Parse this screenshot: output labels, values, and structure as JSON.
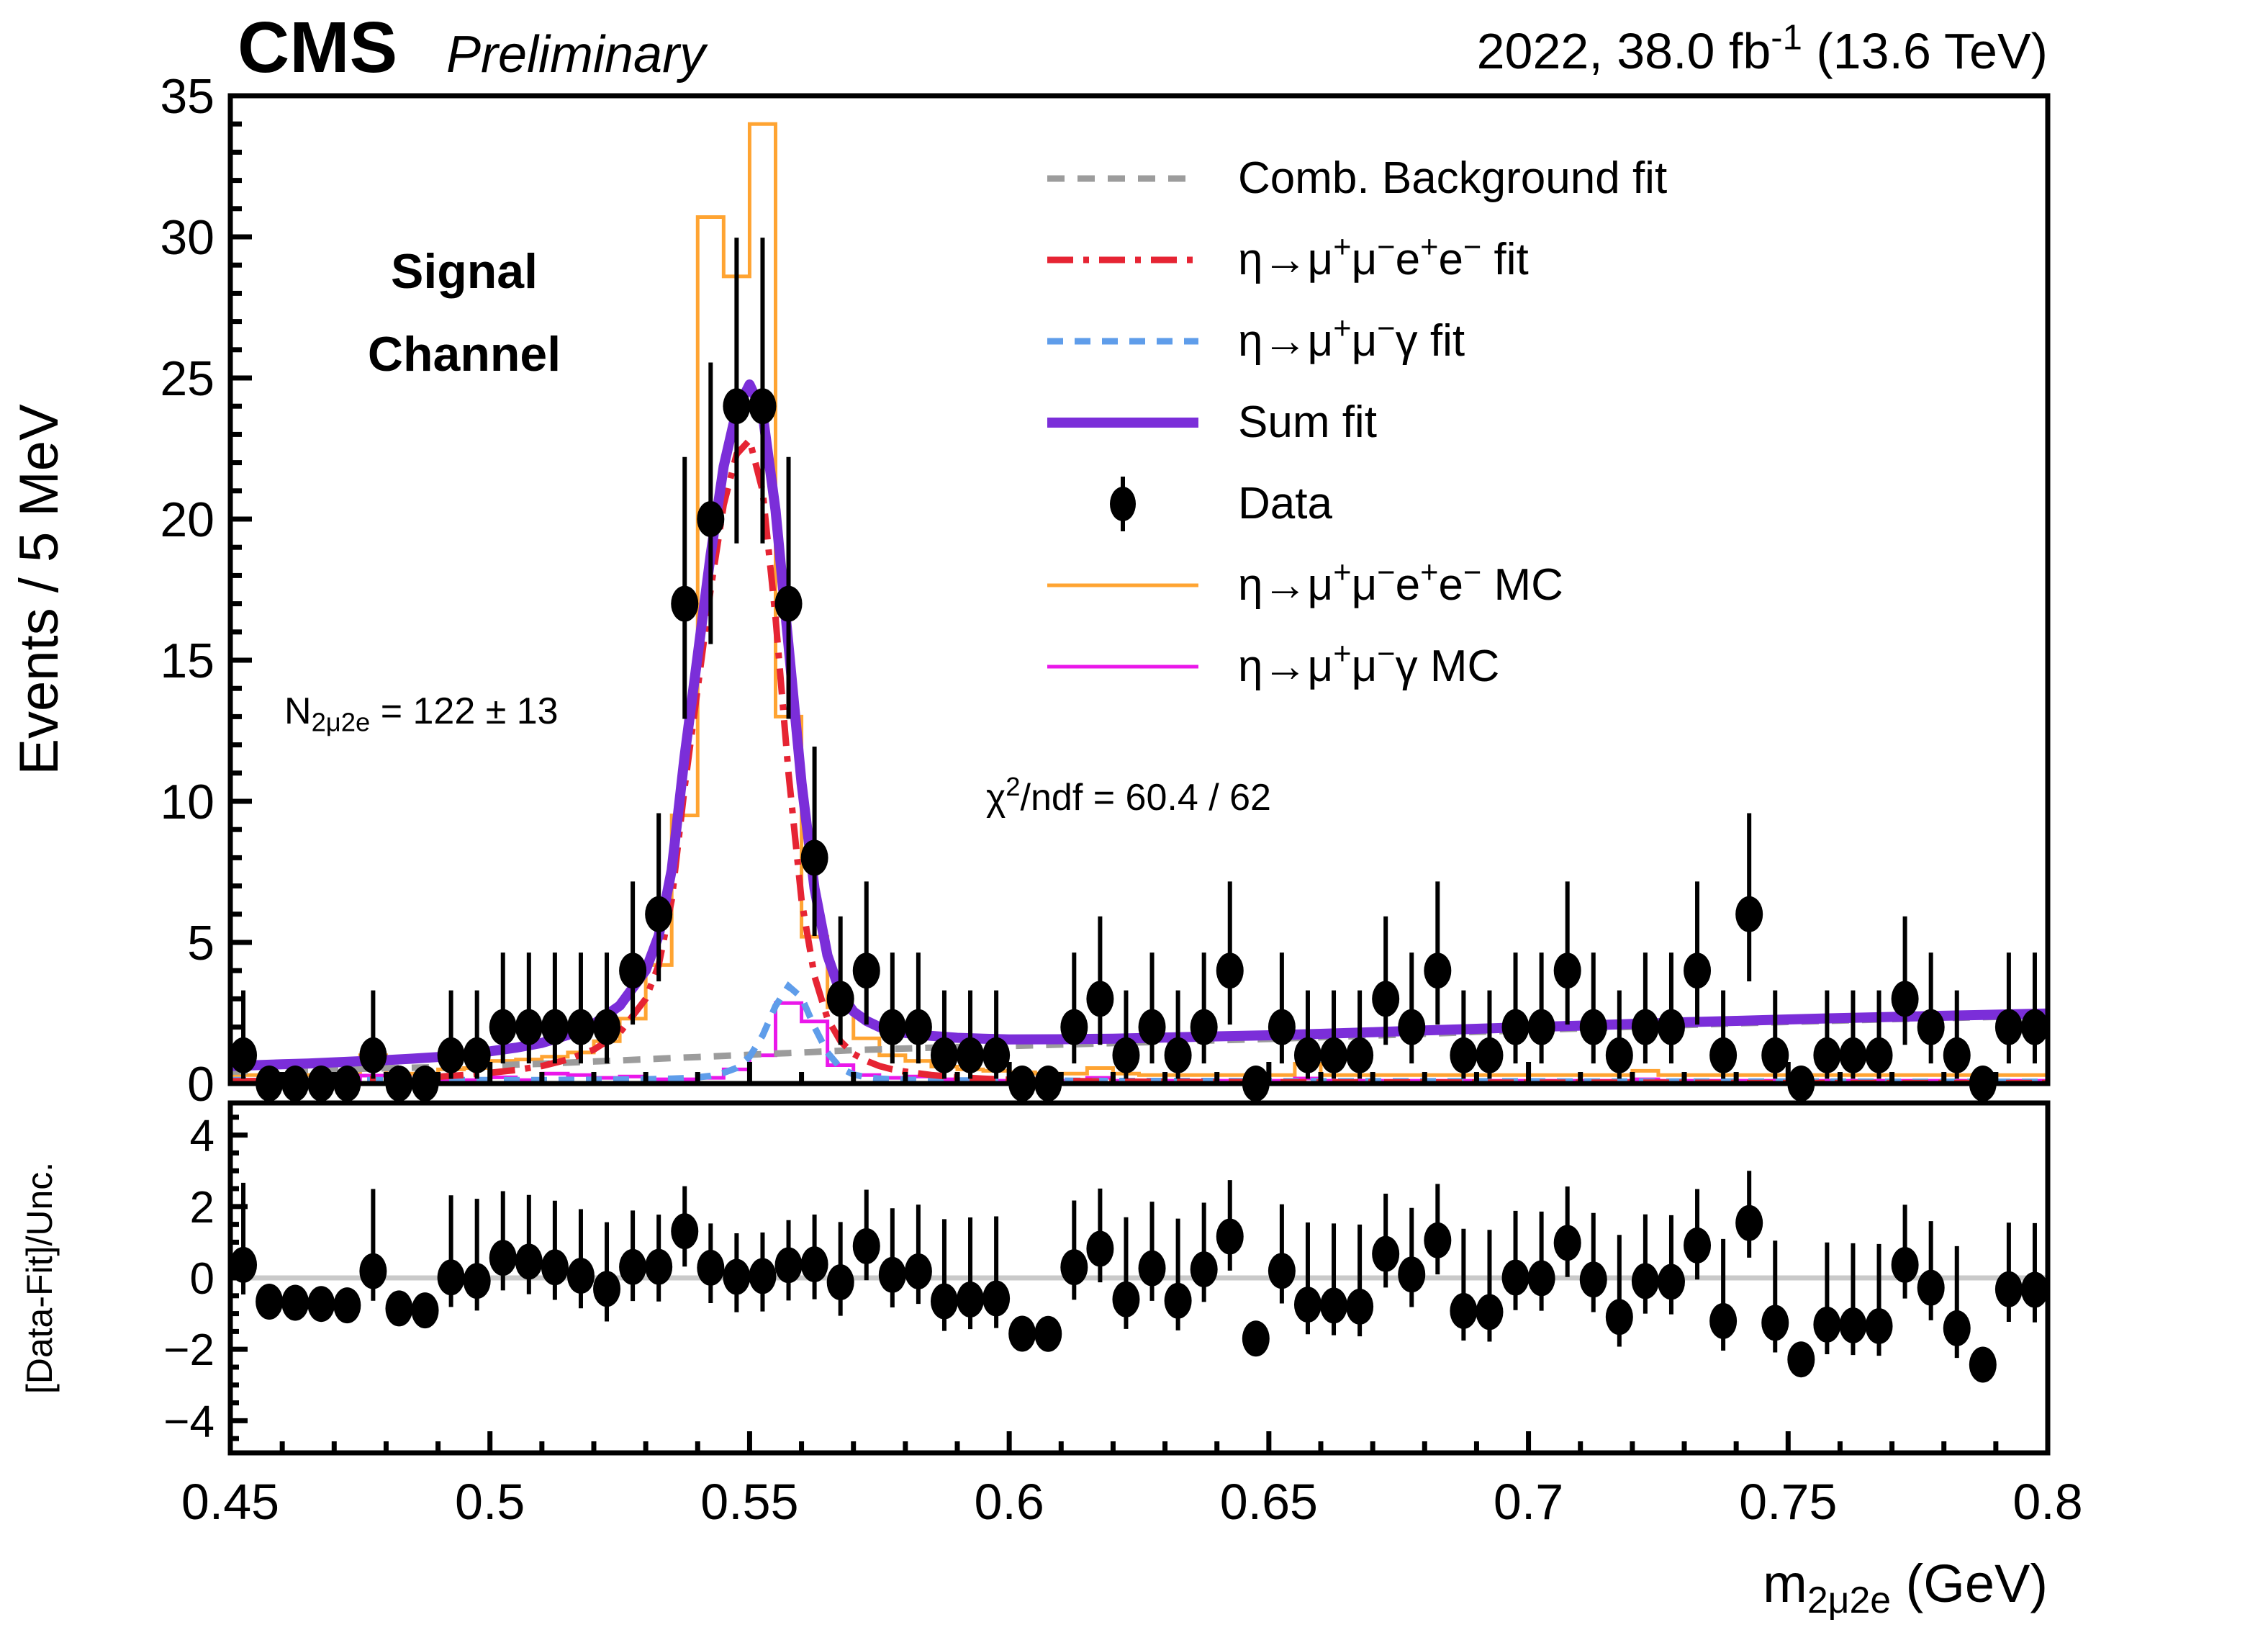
{
  "header": {
    "cms": "CMS",
    "preliminary": "Preliminary",
    "lumi": "2022, 38.0 fb^{-1} (13.6 TeV)"
  },
  "annotations": {
    "signal_channel_1": "Signal",
    "signal_channel_2": "Channel",
    "yield": "N_{2μ2e} = 122 ± 13",
    "chi2": "χ^{2}/ndf = 60.4 / 62"
  },
  "legend": {
    "entries": [
      {
        "label": "Comb. Background fit",
        "style": "line",
        "color": "#9c9c9c",
        "width": 9,
        "dash": "24 18"
      },
      {
        "label": "η→μ^{+}μ^{−}e^{+}e^{−} fit",
        "style": "line",
        "color": "#e62433",
        "width": 9,
        "dash": "36 14 8 14"
      },
      {
        "label": "η→μ^{+}μ^{−}γ fit",
        "style": "line",
        "color": "#5f9dea",
        "width": 9,
        "dash": "22 16"
      },
      {
        "label": "Sum fit",
        "style": "line",
        "color": "#7b2ed9",
        "width": 14,
        "dash": ""
      },
      {
        "label": "Data",
        "style": "marker",
        "color": "#000000",
        "width": 6,
        "dash": ""
      },
      {
        "label": "η→μ^{+}μ^{−}e^{+}e^{−} MC",
        "style": "line",
        "color": "#ffa432",
        "width": 5,
        "dash": ""
      },
      {
        "label": "η→μ^{+}μ^{−}γ MC",
        "style": "line",
        "color": "#ea17ea",
        "width": 5,
        "dash": ""
      }
    ]
  },
  "chart_data": {
    "type": "composite",
    "x": {
      "label": "m_{2μ2e} (GeV)",
      "min": 0.45,
      "max": 0.8,
      "major_ticks": [
        0.45,
        0.5,
        0.55,
        0.6,
        0.65,
        0.7,
        0.75,
        0.8
      ],
      "major_tick_labels": [
        "0.45",
        "0.5",
        "0.55",
        "0.6",
        "0.65",
        "0.7",
        "0.75",
        "0.8"
      ],
      "minor_step": 0.01
    },
    "y_main": {
      "label": "Events / 5 MeV",
      "min": 0,
      "max": 35,
      "major_ticks": [
        0,
        5,
        10,
        15,
        20,
        25,
        30,
        35
      ],
      "minor_step": 1
    },
    "y_pull": {
      "label": "[Data-Fit]/Unc.",
      "min": -4.9,
      "max": 4.9,
      "major_ticks": [
        -4,
        -2,
        0,
        2,
        4
      ],
      "major_tick_labels": [
        "−4",
        "−2",
        "0",
        "2",
        "4"
      ],
      "minor_step": 0.5
    },
    "bins": {
      "start": 0.45,
      "width": 0.005,
      "count": 70
    },
    "data_counts": [
      1,
      0,
      0,
      0,
      0,
      1,
      0,
      0,
      1,
      1,
      2,
      2,
      2,
      2,
      2,
      4,
      6,
      17,
      20,
      24,
      24,
      17,
      8,
      3,
      4,
      2,
      2,
      1,
      1,
      1,
      0,
      0,
      2,
      3,
      1,
      2,
      1,
      2,
      4,
      0,
      2,
      1,
      1,
      1,
      3,
      2,
      4,
      1,
      1,
      2,
      2,
      4,
      2,
      1,
      2,
      2,
      4,
      1,
      6,
      1,
      0,
      1,
      1,
      1,
      3,
      2,
      1,
      0,
      2,
      2
    ],
    "poisson_errors": {
      "0": [
        0,
        0
      ],
      "1": [
        0.83,
        2.3
      ],
      "2": [
        1.29,
        2.64
      ],
      "3": [
        1.63,
        2.92
      ],
      "4": [
        1.91,
        3.16
      ],
      "5": [
        2.16,
        3.38
      ],
      "6": [
        2.38,
        3.58
      ],
      "8": [
        2.77,
        3.94
      ],
      "17": [
        4.08,
        5.2
      ],
      "20": [
        4.43,
        5.55
      ],
      "24": [
        4.86,
        5.97
      ]
    },
    "mc_2mu2e": [
      0.3,
      0.3,
      0.3,
      0.3,
      0.3,
      1.0,
      0.35,
      0.35,
      0.5,
      0.55,
      0.8,
      0.85,
      0.95,
      1.1,
      1.5,
      2.3,
      4.2,
      9.5,
      30.7,
      28.6,
      34.0,
      13.0,
      5.2,
      2.7,
      1.6,
      1.0,
      0.8,
      0.6,
      0.5,
      0.45,
      0.4,
      0.35,
      0.35,
      0.55,
      0.35,
      0.3,
      0.3,
      0.3,
      0.3,
      0.3,
      0.3,
      0.7,
      0.3,
      0.3,
      0.3,
      0.3,
      0.3,
      0.3,
      0.3,
      0.3,
      0.3,
      0.3,
      0.3,
      0.3,
      0.45,
      0.3,
      0.3,
      0.3,
      0.3,
      0.3,
      0.3,
      0.3,
      0.3,
      0.3,
      0.3,
      0.3,
      0.3,
      0.3,
      0.3,
      0.3
    ],
    "mc_2mugamma": [
      0.12,
      0.12,
      0.12,
      0.12,
      0.12,
      0.28,
      0.12,
      0.12,
      0.12,
      0.12,
      0.22,
      0.12,
      0.35,
      0.3,
      0.2,
      0.25,
      0.15,
      0.15,
      0.2,
      0.5,
      1.0,
      2.85,
      2.2,
      0.65,
      0.3,
      0.2,
      0.25,
      0.15,
      0.1,
      0.1,
      0.1,
      0.1,
      0.1,
      0.2,
      0.1,
      0.1,
      0.1,
      0.1,
      0.1,
      0.1,
      0.1,
      0.18,
      0.1,
      0.1,
      0.1,
      0.1,
      0.1,
      0.1,
      0.1,
      0.1,
      0.1,
      0.1,
      0.1,
      0.1,
      0.15,
      0.1,
      0.1,
      0.1,
      0.1,
      0.1,
      0.1,
      0.1,
      0.1,
      0.1,
      0.1,
      0.1,
      0.1,
      0.1,
      0.1,
      0.1
    ],
    "curves": {
      "x": [
        0.45,
        0.455,
        0.46,
        0.465,
        0.47,
        0.475,
        0.48,
        0.485,
        0.49,
        0.495,
        0.5,
        0.505,
        0.51,
        0.515,
        0.52,
        0.525,
        0.53,
        0.5325,
        0.535,
        0.5375,
        0.54,
        0.5425,
        0.545,
        0.5475,
        0.55,
        0.5525,
        0.555,
        0.5575,
        0.56,
        0.5625,
        0.565,
        0.5675,
        0.57,
        0.5725,
        0.575,
        0.5775,
        0.58,
        0.585,
        0.59,
        0.595,
        0.6,
        0.61,
        0.62,
        0.63,
        0.64,
        0.65,
        0.66,
        0.67,
        0.68,
        0.69,
        0.7,
        0.71,
        0.72,
        0.73,
        0.74,
        0.75,
        0.76,
        0.77,
        0.78,
        0.79,
        0.8
      ],
      "background": [
        0.42,
        0.44,
        0.46,
        0.48,
        0.5,
        0.52,
        0.54,
        0.56,
        0.58,
        0.61,
        0.64,
        0.67,
        0.7,
        0.74,
        0.78,
        0.82,
        0.86,
        0.88,
        0.9,
        0.92,
        0.94,
        0.96,
        0.98,
        1.0,
        1.02,
        1.04,
        1.06,
        1.08,
        1.1,
        1.12,
        1.14,
        1.16,
        1.18,
        1.2,
        1.21,
        1.23,
        1.24,
        1.27,
        1.29,
        1.31,
        1.33,
        1.38,
        1.43,
        1.48,
        1.53,
        1.58,
        1.64,
        1.7,
        1.76,
        1.83,
        1.89,
        1.95,
        2.01,
        2.07,
        2.13,
        2.18,
        2.23,
        2.28,
        2.32,
        2.36,
        2.4
      ],
      "signal": [
        0.08,
        0.09,
        0.1,
        0.11,
        0.13,
        0.15,
        0.17,
        0.2,
        0.24,
        0.3,
        0.38,
        0.48,
        0.62,
        0.85,
        1.2,
        1.8,
        3.0,
        4.2,
        6.5,
        10.5,
        14.0,
        17.5,
        20.5,
        22.3,
        22.8,
        21.0,
        16.5,
        11.0,
        6.5,
        3.8,
        2.3,
        1.5,
        1.05,
        0.8,
        0.62,
        0.5,
        0.42,
        0.3,
        0.22,
        0.17,
        0.13,
        0.09,
        0.07,
        0.06,
        0.05,
        0.05,
        0.04,
        0.04,
        0.04,
        0.03,
        0.03,
        0.03,
        0.03,
        0.03,
        0.02,
        0.02,
        0.02,
        0.02,
        0.02,
        0.02,
        0.02
      ],
      "gamma": [
        0.12,
        0.12,
        0.12,
        0.12,
        0.12,
        0.12,
        0.12,
        0.12,
        0.12,
        0.12,
        0.12,
        0.12,
        0.12,
        0.13,
        0.13,
        0.14,
        0.15,
        0.16,
        0.17,
        0.19,
        0.22,
        0.27,
        0.38,
        0.55,
        0.95,
        1.7,
        2.75,
        3.45,
        3.05,
        2.0,
        1.1,
        0.55,
        0.32,
        0.22,
        0.17,
        0.15,
        0.13,
        0.12,
        0.11,
        0.11,
        0.1,
        0.1,
        0.09,
        0.09,
        0.09,
        0.08,
        0.08,
        0.08,
        0.08,
        0.08,
        0.08,
        0.07,
        0.07,
        0.07,
        0.07,
        0.07,
        0.07,
        0.06,
        0.06,
        0.06,
        0.06
      ]
    },
    "colors": {
      "sum_fit": "#7b2ed9",
      "signal_fit": "#e62433",
      "gamma_fit": "#5f9dea",
      "background_fit": "#9c9c9c",
      "mc_2mu2e": "#ffa432",
      "mc_2mugamma": "#ea17ea",
      "data": "#000000",
      "pull_zero_line": "#c9c9c9"
    }
  }
}
